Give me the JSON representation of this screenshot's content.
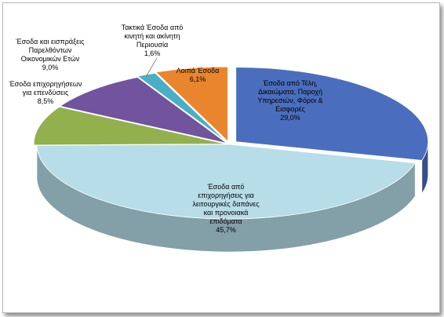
{
  "chart_data": {
    "type": "pie",
    "title": "",
    "slices": [
      {
        "label": [
          "Έσοδα από Τέλη,",
          "Δικαιώματα, Παροχή",
          "Υπηρεσιών, Φόροι &",
          "Εισφορές"
        ],
        "value_text": "29,0%",
        "value": 29.0,
        "color": "#4a6ebd"
      },
      {
        "label": [
          "Έσοδα από",
          "επιχορηγήσεις για",
          "λειτουργικές δαπάνες",
          "και προνοιακά",
          "επιδόματα"
        ],
        "value_text": "45,7%",
        "value": 45.7,
        "color": "#b6dde8"
      },
      {
        "label": [
          "Έσοδα επιχορηγήσεων",
          "για επενδύσεις"
        ],
        "value_text": "8,5%",
        "value": 8.5,
        "color": "#92b04d"
      },
      {
        "label": [
          "Έσοδα και εισπράξεις",
          "Παρελθόντων",
          "Οικονομικών Ετών"
        ],
        "value_text": "9,0%",
        "value": 9.0,
        "color": "#72539d"
      },
      {
        "label": [
          "Τακτικά Έσοδα από",
          "κινητή και ακίνητη",
          "Περιουσία"
        ],
        "value_text": "1,6%",
        "value": 1.6,
        "color": "#4aaec6"
      },
      {
        "label": [
          "Λοιπά Έσοδα"
        ],
        "value_text": "6,1%",
        "value": 6.1,
        "color": "#e9862d"
      }
    ]
  }
}
